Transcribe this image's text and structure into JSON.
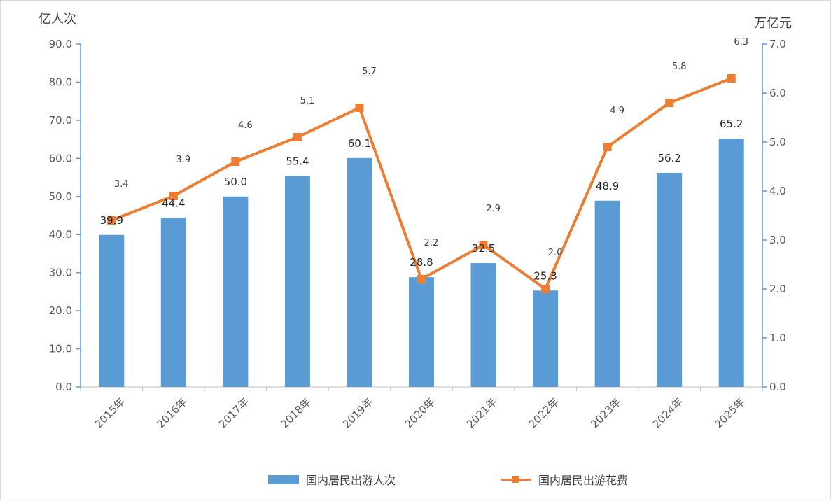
{
  "chart_data": {
    "type": "bar",
    "categories": [
      "2015年",
      "2016年",
      "2017年",
      "2018年",
      "2019年",
      "2020年",
      "2021年",
      "2022年",
      "2023年",
      "2024年",
      "2025年"
    ],
    "series": [
      {
        "name": "国内居民出游人次",
        "type": "bar",
        "axis": "left",
        "color": "#5b9bd5",
        "values": [
          39.9,
          44.4,
          50.0,
          55.4,
          60.1,
          28.8,
          32.5,
          25.3,
          48.9,
          56.2,
          65.2
        ],
        "labels": [
          "39.9",
          "44.4",
          "50.0",
          "55.4",
          "60.1",
          "28.8",
          "32.5",
          "25.3",
          "48.9",
          "56.2",
          "65.2"
        ]
      },
      {
        "name": "国内居民出游花费",
        "type": "line",
        "axis": "right",
        "color": "#ed7d31",
        "values": [
          3.4,
          3.9,
          4.6,
          5.1,
          5.7,
          2.2,
          2.9,
          2.0,
          4.9,
          5.8,
          6.3
        ],
        "labels": [
          "3.4",
          "3.9",
          "4.6",
          "5.1",
          "5.7",
          "2.2",
          "2.9",
          "2.0",
          "4.9",
          "5.8",
          "6.3"
        ]
      }
    ],
    "y_left": {
      "label": "亿人次",
      "ylim": [
        0,
        90
      ],
      "ticks": [
        "0.0",
        "10.0",
        "20.0",
        "30.0",
        "40.0",
        "50.0",
        "60.0",
        "70.0",
        "80.0",
        "90.0"
      ]
    },
    "y_right": {
      "label": "万亿元",
      "ylim": [
        0,
        7
      ],
      "ticks": [
        "0.0",
        "1.0",
        "2.0",
        "3.0",
        "4.0",
        "5.0",
        "6.0",
        "7.0"
      ]
    },
    "grid": false,
    "legend": "bottom"
  }
}
